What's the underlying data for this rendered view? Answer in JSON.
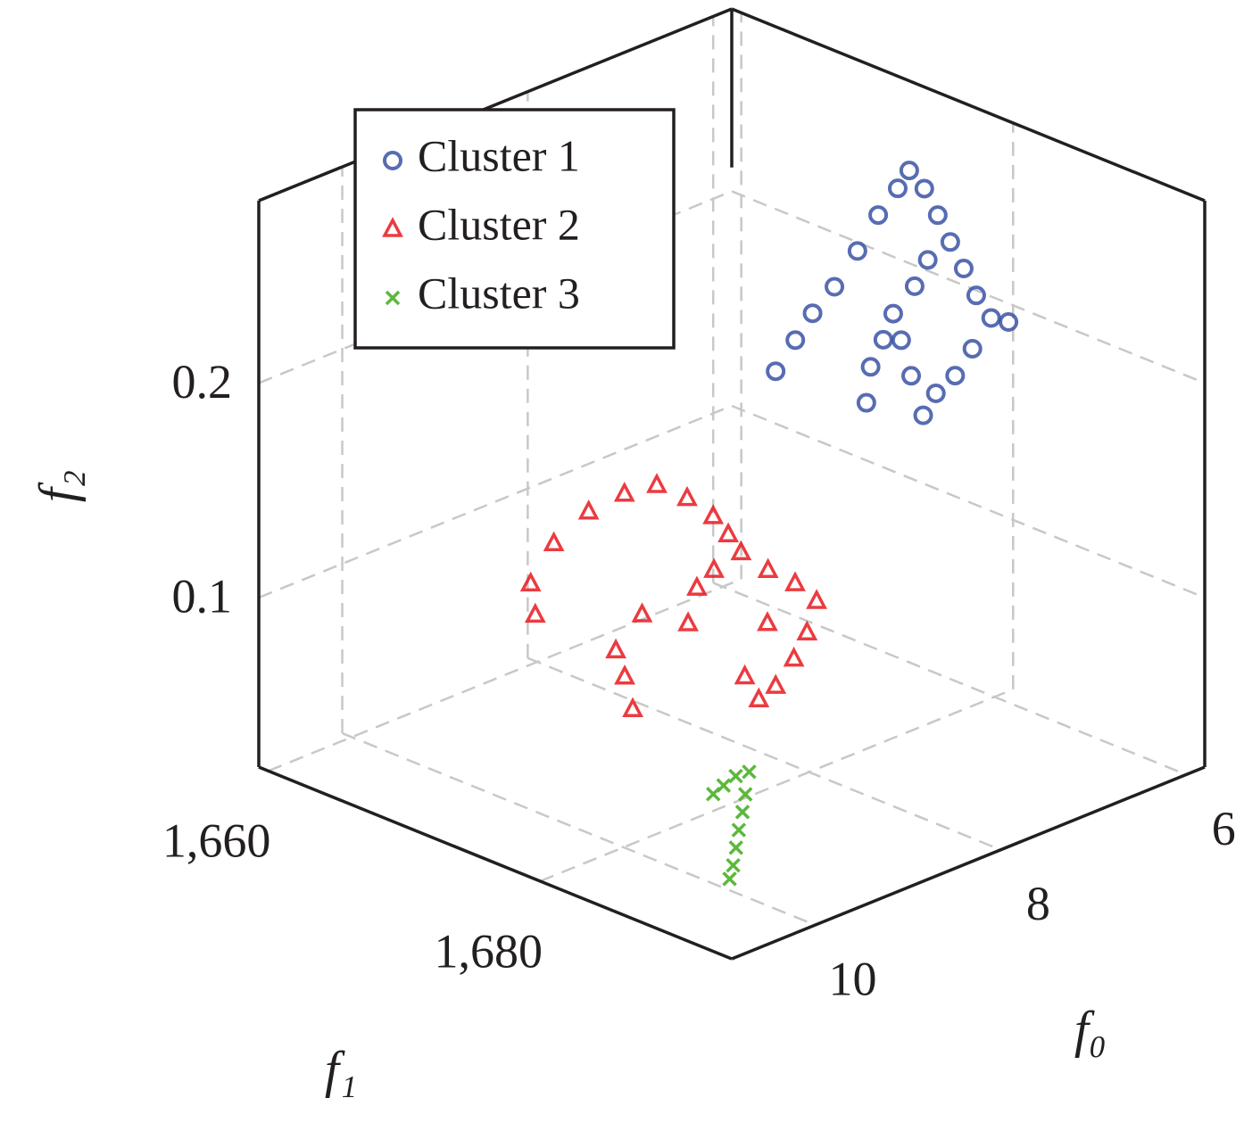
{
  "chart_data": {
    "type": "scatter3d",
    "xlabel": "f₀",
    "ylabel": "f₁",
    "zlabel": "f₂",
    "xlim": [
      5.8,
      10.9
    ],
    "ylim": [
      1659.3,
      1694.1
    ],
    "zlim": [
      0.021,
      0.285
    ],
    "xticks": [
      6,
      8,
      10
    ],
    "yticks": [
      {
        "value": 1660,
        "label": "1,660"
      },
      {
        "value": 1680,
        "label": "1,680"
      }
    ],
    "zticks": [
      0.1,
      0.2
    ],
    "grid": true,
    "legend": "upper left",
    "series": [
      {
        "name": "Cluster 1",
        "color": "#3a52a4",
        "marker": "circle",
        "x": [
          9.24,
          8.72,
          8.27,
          7.8,
          7.2,
          6.61,
          6.15,
          5.85,
          6.01,
          6.29,
          6.58,
          6.86,
          7.15,
          7.37,
          7.33,
          7.88,
          8.33,
          8.67,
          8.66,
          8.57,
          8.15,
          7.84,
          8.24,
          8.67,
          9.17,
          7.36,
          6.94
        ],
        "y": [
          1686.0,
          1683.9,
          1682.1,
          1680.5,
          1678.1,
          1675.6,
          1673.9,
          1672.7,
          1674.9,
          1677.8,
          1680.7,
          1683.6,
          1686.5,
          1689.1,
          1690.1,
          1691.2,
          1693.0,
          1693.9,
          1692.9,
          1691.4,
          1687.8,
          1685.1,
          1687.1,
          1689.1,
          1692.2,
          1683.4,
          1681.5
        ],
        "z": [
          0.245,
          0.245,
          0.245,
          0.245,
          0.245,
          0.245,
          0.245,
          0.245,
          0.245,
          0.245,
          0.245,
          0.245,
          0.245,
          0.245,
          0.245,
          0.245,
          0.245,
          0.245,
          0.232,
          0.245,
          0.245,
          0.245,
          0.245,
          0.245,
          0.245,
          0.245,
          0.245
        ]
      },
      {
        "name": "Cluster 2",
        "color": "#e8191f",
        "marker": "triangle",
        "x": [
          10.41,
          10.02,
          9.36,
          8.75,
          8.32,
          8.03,
          8.04,
          8.14,
          8.3,
          8.85,
          9.18,
          9.7,
          9.83,
          10.45,
          10.75,
          10.37,
          8.47,
          8.56,
          8.59,
          8.71,
          9.18,
          9.6,
          10.06,
          10.33,
          10.1,
          9.27
        ],
        "y": [
          1676.3,
          1673.3,
          1670.5,
          1668.9,
          1668.6,
          1669.0,
          1671.3,
          1673.9,
          1676.1,
          1678.8,
          1679.8,
          1682.7,
          1680.2,
          1682.5,
          1685.2,
          1683.2,
          1678.2,
          1680.8,
          1683.0,
          1685.4,
          1687.9,
          1689.8,
          1691.6,
          1692.2,
          1689.6,
          1685.6
        ],
        "z": [
          0.127,
          0.127,
          0.127,
          0.127,
          0.127,
          0.127,
          0.127,
          0.127,
          0.127,
          0.127,
          0.127,
          0.127,
          0.127,
          0.127,
          0.127,
          0.1,
          0.127,
          0.127,
          0.127,
          0.127,
          0.127,
          0.127,
          0.127,
          0.127,
          0.127,
          0.127
        ]
      },
      {
        "name": "Cluster 3",
        "color": "#5cb83c",
        "marker": "cross",
        "x": [
          8.69,
          8.82,
          9.01,
          9.18,
          9.01,
          9.26,
          9.52,
          9.77,
          10.02,
          10.22
        ],
        "y": [
          1680.3,
          1680.2,
          1680.6,
          1681.0,
          1682.2,
          1683.7,
          1685.2,
          1686.7,
          1688.2,
          1689.3
        ],
        "z": [
          0.034,
          0.034,
          0.034,
          0.034,
          0.034,
          0.034,
          0.034,
          0.034,
          0.034,
          0.034
        ]
      }
    ]
  }
}
